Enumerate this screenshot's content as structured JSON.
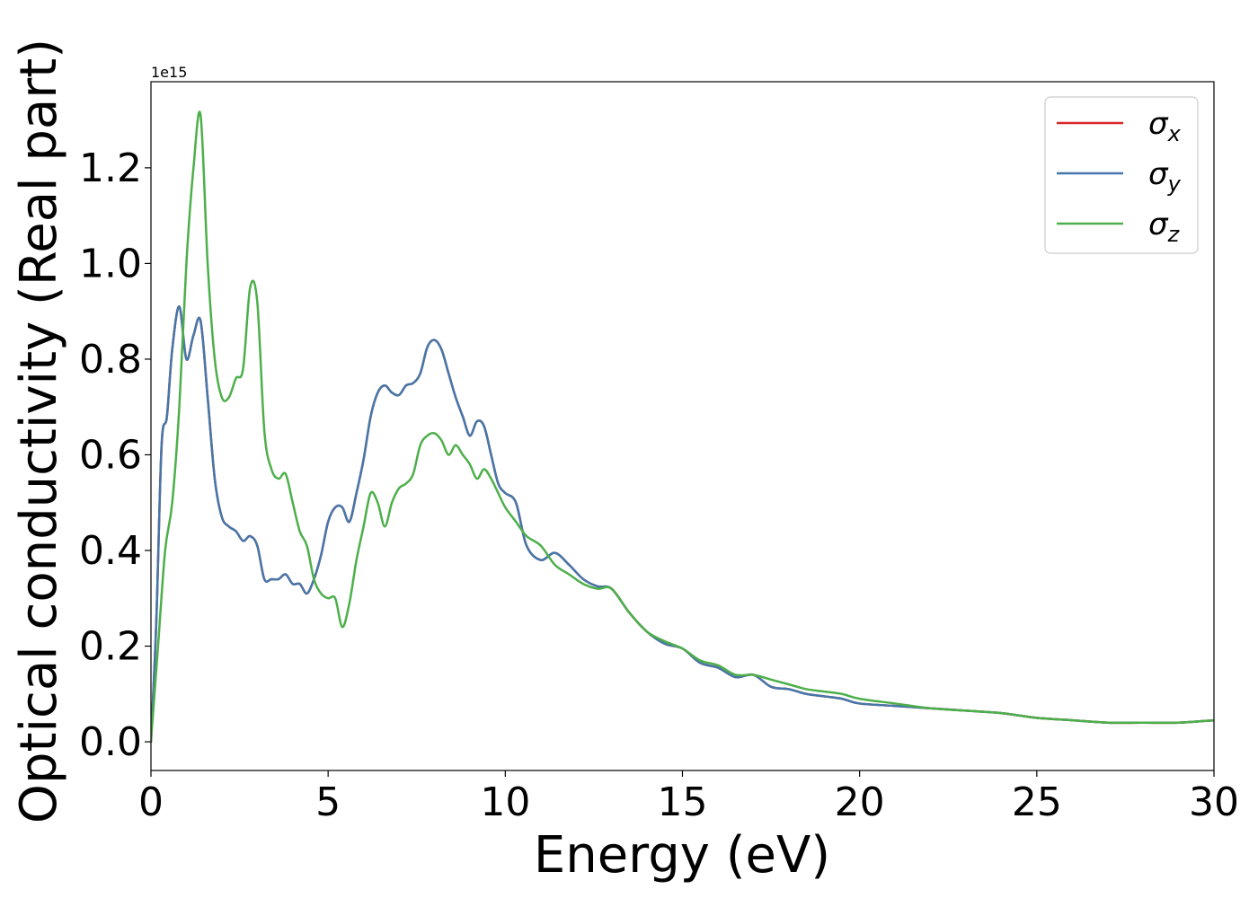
{
  "chart_data": {
    "type": "line",
    "title": "",
    "xlabel": "Energy (eV)",
    "ylabel": "Optical conductivity (Real part)",
    "y_offset_label": "1e15",
    "xlim": [
      0,
      30
    ],
    "ylim": [
      -0.06,
      1.38
    ],
    "x_ticks": [
      0,
      5,
      10,
      15,
      20,
      25,
      30
    ],
    "x_tick_labels": [
      "0",
      "5",
      "10",
      "15",
      "20",
      "25",
      "30"
    ],
    "y_ticks": [
      0.0,
      0.2,
      0.4,
      0.6,
      0.8,
      1.0,
      1.2
    ],
    "y_tick_labels": [
      "0.0",
      "0.2",
      "0.4",
      "0.6",
      "0.8",
      "1.0",
      "1.2"
    ],
    "grid": false,
    "legend_position": "top-right",
    "series": [
      {
        "name": "σ",
        "subscript": "x",
        "color": "#d62728",
        "x": [
          0,
          0.15,
          0.3,
          0.45,
          0.6,
          0.8,
          1.0,
          1.2,
          1.4,
          1.6,
          1.8,
          2.0,
          2.2,
          2.4,
          2.6,
          2.8,
          3.0,
          3.2,
          3.4,
          3.6,
          3.8,
          4.0,
          4.2,
          4.4,
          4.6,
          4.8,
          5.0,
          5.2,
          5.4,
          5.6,
          5.8,
          6.0,
          6.2,
          6.4,
          6.6,
          6.8,
          7.0,
          7.2,
          7.4,
          7.6,
          7.8,
          8.0,
          8.2,
          8.4,
          8.6,
          8.8,
          9.0,
          9.2,
          9.4,
          9.6,
          9.8,
          10.0,
          10.3,
          10.6,
          11.0,
          11.4,
          11.8,
          12.2,
          12.6,
          13.0,
          13.5,
          14.0,
          14.5,
          15.0,
          15.5,
          16.0,
          16.5,
          17.0,
          17.5,
          18.0,
          18.5,
          19.0,
          19.5,
          20.0,
          21.0,
          22.0,
          23.0,
          24.0,
          25.0,
          26.0,
          27.0,
          28.0,
          29.0,
          30.0
        ],
        "values": [
          0.0,
          0.25,
          0.62,
          0.68,
          0.82,
          0.91,
          0.8,
          0.85,
          0.88,
          0.72,
          0.55,
          0.47,
          0.45,
          0.44,
          0.42,
          0.43,
          0.41,
          0.34,
          0.34,
          0.34,
          0.35,
          0.33,
          0.33,
          0.31,
          0.34,
          0.39,
          0.46,
          0.49,
          0.49,
          0.46,
          0.52,
          0.59,
          0.68,
          0.73,
          0.745,
          0.73,
          0.725,
          0.745,
          0.75,
          0.77,
          0.825,
          0.84,
          0.82,
          0.77,
          0.72,
          0.68,
          0.64,
          0.67,
          0.66,
          0.6,
          0.54,
          0.52,
          0.5,
          0.41,
          0.38,
          0.395,
          0.37,
          0.34,
          0.325,
          0.32,
          0.27,
          0.23,
          0.205,
          0.195,
          0.165,
          0.155,
          0.135,
          0.14,
          0.115,
          0.11,
          0.1,
          0.095,
          0.09,
          0.08,
          0.075,
          0.07,
          0.065,
          0.06,
          0.05,
          0.045,
          0.04,
          0.04,
          0.04,
          0.045
        ]
      },
      {
        "name": "σ",
        "subscript": "y",
        "color": "#4477aa",
        "x": [
          0,
          0.15,
          0.3,
          0.45,
          0.6,
          0.8,
          1.0,
          1.2,
          1.4,
          1.6,
          1.8,
          2.0,
          2.2,
          2.4,
          2.6,
          2.8,
          3.0,
          3.2,
          3.4,
          3.6,
          3.8,
          4.0,
          4.2,
          4.4,
          4.6,
          4.8,
          5.0,
          5.2,
          5.4,
          5.6,
          5.8,
          6.0,
          6.2,
          6.4,
          6.6,
          6.8,
          7.0,
          7.2,
          7.4,
          7.6,
          7.8,
          8.0,
          8.2,
          8.4,
          8.6,
          8.8,
          9.0,
          9.2,
          9.4,
          9.6,
          9.8,
          10.0,
          10.3,
          10.6,
          11.0,
          11.4,
          11.8,
          12.2,
          12.6,
          13.0,
          13.5,
          14.0,
          14.5,
          15.0,
          15.5,
          16.0,
          16.5,
          17.0,
          17.5,
          18.0,
          18.5,
          19.0,
          19.5,
          20.0,
          21.0,
          22.0,
          23.0,
          24.0,
          25.0,
          26.0,
          27.0,
          28.0,
          29.0,
          30.0
        ],
        "values": [
          0.0,
          0.25,
          0.62,
          0.68,
          0.82,
          0.91,
          0.8,
          0.85,
          0.88,
          0.72,
          0.55,
          0.47,
          0.45,
          0.44,
          0.42,
          0.43,
          0.41,
          0.34,
          0.34,
          0.34,
          0.35,
          0.33,
          0.33,
          0.31,
          0.34,
          0.39,
          0.46,
          0.49,
          0.49,
          0.46,
          0.52,
          0.59,
          0.68,
          0.73,
          0.745,
          0.73,
          0.725,
          0.745,
          0.75,
          0.77,
          0.825,
          0.84,
          0.82,
          0.77,
          0.72,
          0.68,
          0.64,
          0.67,
          0.66,
          0.6,
          0.54,
          0.52,
          0.5,
          0.41,
          0.38,
          0.395,
          0.37,
          0.34,
          0.325,
          0.32,
          0.27,
          0.23,
          0.205,
          0.195,
          0.165,
          0.155,
          0.135,
          0.14,
          0.115,
          0.11,
          0.1,
          0.095,
          0.09,
          0.08,
          0.075,
          0.07,
          0.065,
          0.06,
          0.05,
          0.045,
          0.04,
          0.04,
          0.04,
          0.045
        ]
      },
      {
        "name": "σ",
        "subscript": "z",
        "color": "#4daf4a",
        "x": [
          0,
          0.2,
          0.4,
          0.6,
          0.8,
          1.0,
          1.2,
          1.4,
          1.6,
          1.8,
          2.0,
          2.2,
          2.4,
          2.6,
          2.8,
          3.0,
          3.2,
          3.4,
          3.6,
          3.8,
          4.0,
          4.2,
          4.4,
          4.6,
          4.8,
          5.0,
          5.2,
          5.4,
          5.6,
          5.8,
          6.0,
          6.2,
          6.4,
          6.6,
          6.8,
          7.0,
          7.2,
          7.4,
          7.6,
          7.8,
          8.0,
          8.2,
          8.4,
          8.6,
          8.8,
          9.0,
          9.2,
          9.4,
          9.6,
          9.8,
          10.0,
          10.3,
          10.6,
          11.0,
          11.4,
          11.8,
          12.2,
          12.6,
          13.0,
          13.5,
          14.0,
          14.5,
          15.0,
          15.5,
          16.0,
          16.5,
          17.0,
          17.5,
          18.0,
          18.5,
          19.0,
          19.5,
          20.0,
          21.0,
          22.0,
          23.0,
          24.0,
          25.0,
          26.0,
          27.0,
          28.0,
          29.0,
          30.0
        ],
        "values": [
          0.0,
          0.2,
          0.4,
          0.5,
          0.7,
          1.0,
          1.2,
          1.31,
          1.0,
          0.8,
          0.72,
          0.72,
          0.76,
          0.78,
          0.95,
          0.92,
          0.65,
          0.57,
          0.55,
          0.56,
          0.5,
          0.44,
          0.41,
          0.34,
          0.31,
          0.3,
          0.3,
          0.24,
          0.29,
          0.38,
          0.45,
          0.52,
          0.5,
          0.45,
          0.5,
          0.53,
          0.54,
          0.56,
          0.62,
          0.64,
          0.645,
          0.63,
          0.6,
          0.62,
          0.6,
          0.58,
          0.55,
          0.57,
          0.55,
          0.52,
          0.49,
          0.46,
          0.43,
          0.41,
          0.37,
          0.35,
          0.33,
          0.32,
          0.32,
          0.27,
          0.23,
          0.21,
          0.195,
          0.17,
          0.16,
          0.14,
          0.14,
          0.13,
          0.12,
          0.11,
          0.105,
          0.1,
          0.09,
          0.08,
          0.07,
          0.065,
          0.06,
          0.05,
          0.045,
          0.04,
          0.04,
          0.04,
          0.045
        ]
      }
    ]
  }
}
